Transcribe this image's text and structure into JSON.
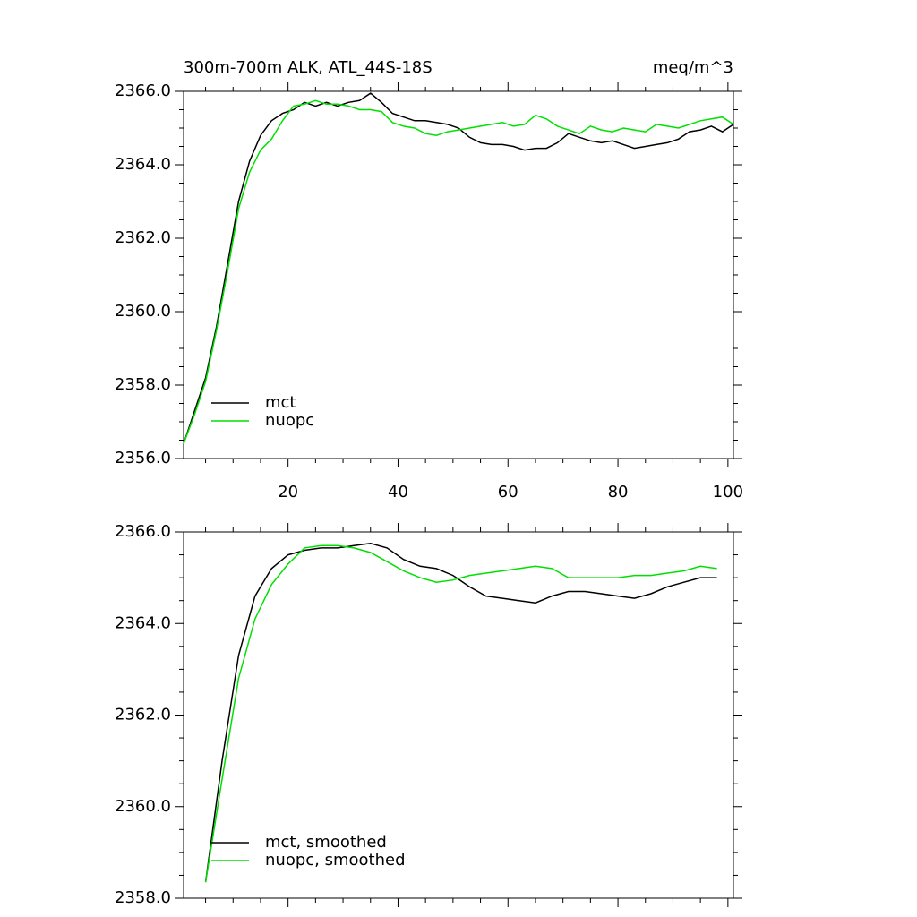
{
  "chart_data": [
    {
      "type": "line",
      "title": "300m-700m ALK, ATL_44S-18S",
      "subtitle": "meq/m^3",
      "x": [
        1,
        3,
        5,
        7,
        9,
        11,
        13,
        15,
        17,
        19,
        21,
        23,
        25,
        27,
        29,
        31,
        33,
        35,
        37,
        39,
        41,
        43,
        45,
        47,
        49,
        51,
        53,
        55,
        57,
        59,
        61,
        63,
        65,
        67,
        69,
        71,
        73,
        75,
        77,
        79,
        81,
        83,
        85,
        87,
        89,
        91,
        93,
        95,
        97,
        99,
        101
      ],
      "series": [
        {
          "name": "mct",
          "color": "#000000",
          "values": [
            2356.4,
            2357.3,
            2358.2,
            2359.6,
            2361.3,
            2363.0,
            2364.1,
            2364.8,
            2365.2,
            2365.4,
            2365.5,
            2365.7,
            2365.6,
            2365.7,
            2365.6,
            2365.7,
            2365.75,
            2365.95,
            2365.7,
            2365.4,
            2365.3,
            2365.2,
            2365.2,
            2365.15,
            2365.1,
            2365.0,
            2364.75,
            2364.6,
            2364.55,
            2364.55,
            2364.5,
            2364.4,
            2364.45,
            2364.45,
            2364.6,
            2364.85,
            2364.75,
            2364.65,
            2364.6,
            2364.65,
            2364.55,
            2364.45,
            2364.5,
            2364.55,
            2364.6,
            2364.7,
            2364.9,
            2364.95,
            2365.05,
            2364.9,
            2365.1
          ]
        },
        {
          "name": "nuopc",
          "color": "#00e000",
          "values": [
            2356.4,
            2357.2,
            2358.1,
            2359.5,
            2361.1,
            2362.8,
            2363.8,
            2364.4,
            2364.7,
            2365.2,
            2365.6,
            2365.65,
            2365.75,
            2365.65,
            2365.65,
            2365.6,
            2365.5,
            2365.5,
            2365.45,
            2365.15,
            2365.05,
            2365.0,
            2364.85,
            2364.8,
            2364.9,
            2364.95,
            2365.0,
            2365.05,
            2365.1,
            2365.15,
            2365.05,
            2365.1,
            2365.35,
            2365.25,
            2365.05,
            2364.95,
            2364.85,
            2365.05,
            2364.95,
            2364.9,
            2365.0,
            2364.95,
            2364.9,
            2365.1,
            2365.05,
            2365.0,
            2365.1,
            2365.2,
            2365.25,
            2365.3,
            2365.1
          ]
        }
      ],
      "xlim": [
        1,
        101
      ],
      "xticks": [
        20,
        40,
        60,
        80,
        100
      ],
      "xtick_labels": true,
      "ylim": [
        2356,
        2366
      ],
      "yticks": [
        {
          "value": 2356,
          "label": "2356.0"
        },
        {
          "value": 2358,
          "label": "2358.0"
        },
        {
          "value": 2360,
          "label": "2360.0"
        },
        {
          "value": 2362,
          "label": "2362.0"
        },
        {
          "value": 2364,
          "label": "2364.0"
        },
        {
          "value": 2366,
          "label": "2366.0"
        }
      ],
      "legend": "lower left"
    },
    {
      "type": "line",
      "x": [
        5,
        8,
        11,
        14,
        17,
        20,
        23,
        26,
        29,
        32,
        35,
        38,
        41,
        44,
        47,
        50,
        53,
        56,
        59,
        62,
        65,
        68,
        71,
        74,
        77,
        80,
        83,
        86,
        89,
        92,
        95,
        98
      ],
      "series": [
        {
          "name": "mct, smoothed",
          "color": "#000000",
          "values": [
            2358.35,
            2361.0,
            2363.3,
            2364.6,
            2365.2,
            2365.5,
            2365.6,
            2365.65,
            2365.65,
            2365.7,
            2365.75,
            2365.65,
            2365.4,
            2365.25,
            2365.2,
            2365.05,
            2364.8,
            2364.6,
            2364.55,
            2364.5,
            2364.45,
            2364.6,
            2364.7,
            2364.7,
            2364.65,
            2364.6,
            2364.55,
            2364.65,
            2364.8,
            2364.9,
            2365.0,
            2365.0
          ]
        },
        {
          "name": "nuopc, smoothed",
          "color": "#00e000",
          "values": [
            2358.35,
            2360.6,
            2362.8,
            2364.1,
            2364.85,
            2365.3,
            2365.65,
            2365.7,
            2365.7,
            2365.65,
            2365.55,
            2365.35,
            2365.15,
            2365.0,
            2364.9,
            2364.95,
            2365.05,
            2365.1,
            2365.15,
            2365.2,
            2365.25,
            2365.2,
            2365.0,
            2365.0,
            2365.0,
            2365.0,
            2365.05,
            2365.05,
            2365.1,
            2365.15,
            2365.25,
            2365.2
          ]
        }
      ],
      "xlim": [
        1,
        101
      ],
      "xticks": [
        20,
        40,
        60,
        80,
        100
      ],
      "xtick_labels": false,
      "ylim": [
        2358,
        2366
      ],
      "yticks": [
        {
          "value": 2358,
          "label": "2358.0"
        },
        {
          "value": 2360,
          "label": "2360.0"
        },
        {
          "value": 2362,
          "label": "2362.0"
        },
        {
          "value": 2364,
          "label": "2364.0"
        },
        {
          "value": 2366,
          "label": "2366.0"
        }
      ],
      "legend": "lower left"
    }
  ]
}
